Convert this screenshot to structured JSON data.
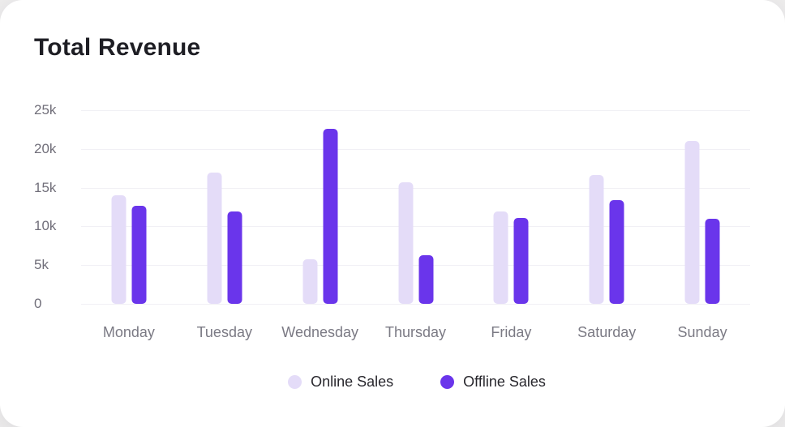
{
  "card": {
    "title": "Total Revenue"
  },
  "chart_data": {
    "type": "bar",
    "title": "Total Revenue",
    "categories": [
      "Monday",
      "Tuesday",
      "Wednesday",
      "Thursday",
      "Friday",
      "Saturday",
      "Sunday"
    ],
    "series": [
      {
        "name": "Online Sales",
        "color": "#E4DCF8",
        "values": [
          14000,
          17000,
          5800,
          15700,
          11900,
          16600,
          21000
        ]
      },
      {
        "name": "Offline Sales",
        "color": "#6A35EB",
        "values": [
          12700,
          11900,
          22600,
          6300,
          11100,
          13400,
          11000
        ]
      }
    ],
    "ylim": [
      0,
      25000
    ],
    "yticks": [
      0,
      5000,
      10000,
      15000,
      20000,
      25000
    ],
    "ytick_labels": [
      "0",
      "5k",
      "10k",
      "15k",
      "20k",
      "25k"
    ],
    "grid": true,
    "legend_position": "bottom"
  },
  "colors": {
    "online": "#E4DCF8",
    "offline": "#6A35EB",
    "title_text": "#1E1E24",
    "axis_text": "#716F7A",
    "category_text": "#7B7A84",
    "legend_text": "#28272D",
    "gridline": "#F1F0F5",
    "card_bg": "#FFFFFF",
    "page_bg": "#EDECEC"
  }
}
